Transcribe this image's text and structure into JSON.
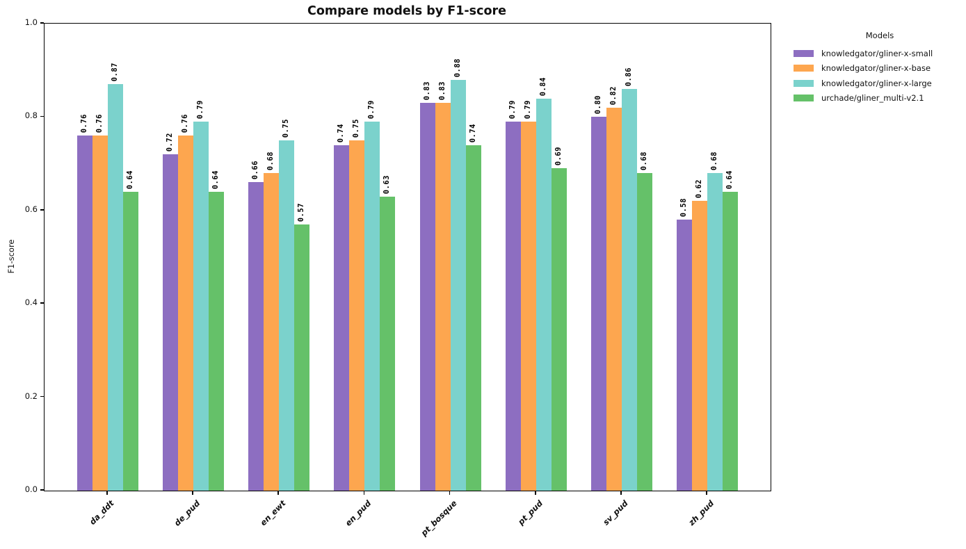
{
  "chart_data": {
    "type": "bar",
    "title": "Compare models by F1-score",
    "xlabel": "",
    "ylabel": "F1-score",
    "ylim": [
      0.0,
      1.0
    ],
    "yticks": [
      0.0,
      0.2,
      0.4,
      0.6,
      0.8,
      1.0
    ],
    "grid": false,
    "background": "#ffffff",
    "legend_title": "Models",
    "legend_position": "outside upper right",
    "bar_label_format": ".2f",
    "bar_label_rotation": 90,
    "xtick_rotation": 45,
    "categories": [
      "da_ddt",
      "de_pud",
      "en_ewt",
      "en_pud",
      "pt_bosque",
      "pt_pud",
      "sv_pud",
      "zh_pud"
    ],
    "series": [
      {
        "name": "knowledgator/gliner-x-small",
        "color": "#8d6ec1",
        "values": [
          0.76,
          0.72,
          0.66,
          0.74,
          0.83,
          0.79,
          0.8,
          0.58
        ]
      },
      {
        "name": "knowledgator/gliner-x-base",
        "color": "#fda64f",
        "values": [
          0.76,
          0.76,
          0.68,
          0.75,
          0.83,
          0.79,
          0.82,
          0.62
        ]
      },
      {
        "name": "knowledgator/gliner-x-large",
        "color": "#7bd2cc",
        "values": [
          0.87,
          0.79,
          0.75,
          0.79,
          0.88,
          0.84,
          0.86,
          0.68
        ]
      },
      {
        "name": "urchade/gliner_multi-v2.1",
        "color": "#65c169",
        "values": [
          0.64,
          0.64,
          0.57,
          0.63,
          0.74,
          0.69,
          0.68,
          0.64
        ]
      }
    ]
  }
}
